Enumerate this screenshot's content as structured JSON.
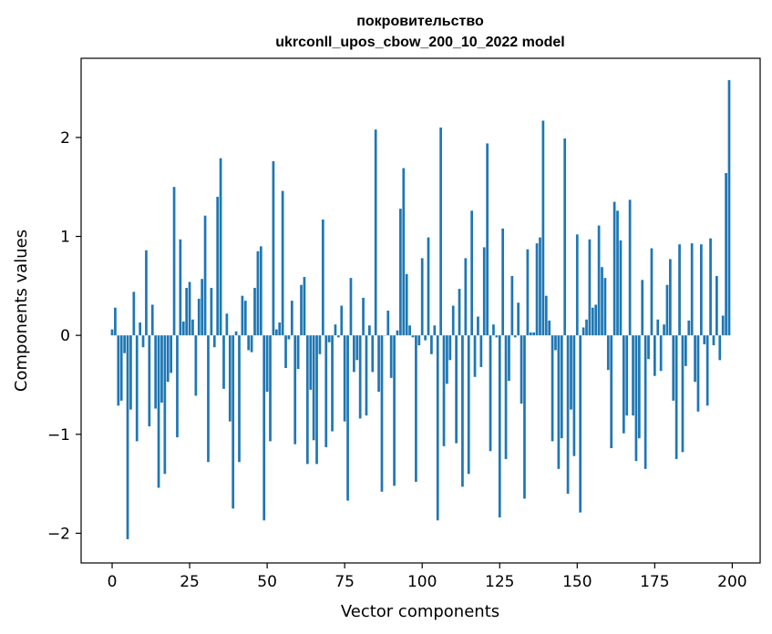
{
  "chart_data": {
    "type": "bar",
    "title": "покровительство",
    "subtitle": "ukrconll_upos_cbow_200_10_2022 model",
    "xlabel": "Vector components",
    "ylabel": "Components values",
    "xlim": [
      -10,
      209
    ],
    "ylim": [
      -2.3,
      2.8
    ],
    "xticks": [
      0,
      25,
      50,
      75,
      100,
      125,
      150,
      175,
      200
    ],
    "xtick_labels": [
      "0",
      "25",
      "50",
      "75",
      "100",
      "125",
      "150",
      "175",
      "200"
    ],
    "yticks": [
      -2,
      -1,
      0,
      1,
      2
    ],
    "ytick_labels": [
      "−2",
      "−1",
      "0",
      "1",
      "2"
    ],
    "grid": false,
    "bar_color": "#1f77b4",
    "values": [
      0.06,
      0.28,
      -0.71,
      -0.66,
      -0.18,
      -2.06,
      -0.75,
      0.44,
      -1.07,
      0.13,
      -0.12,
      0.86,
      -0.92,
      0.31,
      -0.74,
      -1.54,
      -0.68,
      -1.4,
      -0.47,
      -0.38,
      1.5,
      -1.03,
      0.97,
      0.14,
      0.48,
      0.54,
      0.16,
      -0.61,
      0.37,
      0.57,
      1.21,
      -1.28,
      0.48,
      -0.12,
      1.4,
      1.79,
      -0.54,
      0.22,
      -0.87,
      -1.75,
      0.04,
      -1.28,
      0.4,
      0.35,
      -0.15,
      -0.17,
      0.48,
      0.85,
      0.9,
      -1.87,
      -0.57,
      -1.07,
      1.76,
      0.06,
      0.13,
      1.46,
      -0.33,
      -0.04,
      0.35,
      -1.1,
      -0.34,
      0.51,
      0.59,
      -1.3,
      -0.55,
      -1.06,
      -1.3,
      -0.19,
      1.17,
      -1.13,
      -0.07,
      -0.97,
      0.11,
      -0.02,
      0.3,
      -0.87,
      -1.67,
      0.58,
      -0.37,
      -0.25,
      -0.84,
      0.38,
      -0.81,
      0.1,
      -0.37,
      2.08,
      -0.57,
      -1.58,
      0.0,
      0.25,
      -0.43,
      -1.52,
      0.05,
      1.28,
      1.69,
      0.62,
      0.1,
      -0.02,
      -1.48,
      -0.1,
      0.78,
      -0.05,
      0.99,
      -0.19,
      0.1,
      -1.87,
      2.1,
      -1.12,
      -0.49,
      -0.25,
      0.3,
      -1.09,
      0.47,
      -1.53,
      0.78,
      -1.4,
      1.26,
      -0.42,
      0.19,
      -0.32,
      0.89,
      1.94,
      -1.17,
      0.11,
      -0.02,
      -1.84,
      1.08,
      -1.25,
      -0.46,
      0.6,
      -0.02,
      0.33,
      -0.69,
      -1.65,
      0.87,
      0.03,
      0.03,
      0.93,
      0.99,
      2.17,
      0.4,
      0.15,
      -1.07,
      -0.15,
      -1.35,
      -1.04,
      1.99,
      -1.6,
      -0.75,
      -1.22,
      1.02,
      -1.79,
      0.08,
      0.16,
      0.97,
      0.28,
      0.31,
      1.11,
      0.69,
      0.58,
      -0.35,
      -1.14,
      1.35,
      1.26,
      0.96,
      -0.99,
      -0.81,
      1.37,
      -0.81,
      -1.27,
      -1.04,
      0.56,
      -1.35,
      -0.24,
      0.88,
      -0.41,
      0.16,
      -0.36,
      0.11,
      0.51,
      0.77,
      -0.66,
      -1.25,
      0.92,
      -1.18,
      -0.31,
      0.15,
      0.93,
      -0.47,
      -0.77,
      0.92,
      -0.09,
      -0.71,
      0.98,
      -0.1,
      0.6,
      -0.25,
      0.2,
      1.64,
      2.58
    ]
  }
}
